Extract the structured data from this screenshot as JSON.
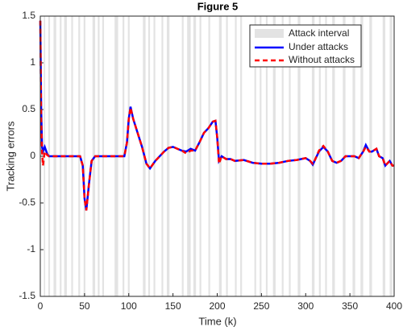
{
  "chart_data": {
    "type": "line",
    "title": "Figure 5",
    "xlabel": "Time (k)",
    "ylabel": "Tracking errors",
    "xlim": [
      0,
      400
    ],
    "ylim": [
      -1.5,
      1.5
    ],
    "xticks": [
      0,
      50,
      100,
      150,
      200,
      250,
      300,
      350,
      400
    ],
    "yticks": [
      -1.5,
      -1,
      -0.5,
      0,
      0.5,
      1,
      1.5
    ],
    "attack": {
      "name": "Attack interval",
      "color": "#e3e3e3",
      "intervals": [
        [
          4,
          5.5
        ],
        [
          9,
          11
        ],
        [
          15,
          18
        ],
        [
          22,
          24
        ],
        [
          27,
          30
        ],
        [
          35,
          37
        ],
        [
          43,
          45
        ],
        [
          49,
          51
        ],
        [
          59,
          62
        ],
        [
          65,
          67
        ],
        [
          70,
          72
        ],
        [
          84,
          88
        ],
        [
          93,
          95
        ],
        [
          99,
          101
        ],
        [
          116,
          119
        ],
        [
          122,
          124
        ],
        [
          128,
          130
        ],
        [
          137,
          139
        ],
        [
          143,
          146
        ],
        [
          160,
          162
        ],
        [
          166,
          170
        ],
        [
          173,
          176
        ],
        [
          180,
          182
        ],
        [
          190,
          192
        ],
        [
          202,
          205
        ],
        [
          210,
          212
        ],
        [
          220,
          222
        ],
        [
          226,
          228
        ],
        [
          242,
          244
        ],
        [
          248,
          250
        ],
        [
          255,
          257
        ],
        [
          263,
          266
        ],
        [
          273,
          275
        ],
        [
          281,
          283
        ],
        [
          291,
          294
        ],
        [
          307,
          310
        ],
        [
          315,
          317
        ],
        [
          322,
          324
        ],
        [
          330,
          333
        ],
        [
          342,
          345
        ],
        [
          353,
          356
        ],
        [
          362,
          365
        ],
        [
          372,
          375
        ],
        [
          387,
          390
        ],
        [
          395,
          398
        ]
      ]
    },
    "x": [
      0,
      1,
      2,
      3,
      5,
      8,
      10,
      45,
      48,
      50,
      52,
      55,
      58,
      62,
      95,
      98,
      100,
      102,
      105,
      110,
      115,
      120,
      124,
      130,
      140,
      145,
      150,
      155,
      160,
      165,
      170,
      175,
      180,
      185,
      190,
      195,
      198,
      200,
      202,
      205,
      210,
      215,
      220,
      230,
      240,
      250,
      260,
      270,
      280,
      290,
      300,
      305,
      308,
      310,
      315,
      320,
      325,
      330,
      335,
      340,
      345,
      350,
      355,
      360,
      365,
      368,
      372,
      375,
      380,
      383,
      387,
      390,
      395,
      398,
      400
    ],
    "series": [
      {
        "name": "Under attacks",
        "color": "#0000ff",
        "dash": false,
        "values": [
          1.45,
          0.5,
          0.1,
          0.05,
          0.1,
          0.02,
          0,
          0,
          -0.1,
          -0.45,
          -0.58,
          -0.3,
          -0.05,
          0,
          0,
          0.15,
          0.4,
          0.53,
          0.4,
          0.25,
          0.1,
          -0.08,
          -0.13,
          -0.05,
          0.05,
          0.09,
          0.1,
          0.08,
          0.06,
          0.05,
          0.08,
          0.06,
          0.15,
          0.25,
          0.3,
          0.37,
          0.38,
          0.2,
          -0.05,
          0,
          -0.03,
          -0.03,
          -0.05,
          -0.04,
          -0.07,
          -0.08,
          -0.08,
          -0.07,
          -0.05,
          -0.04,
          -0.02,
          -0.05,
          -0.09,
          -0.05,
          0.05,
          0.1,
          0.05,
          -0.05,
          -0.07,
          -0.05,
          0,
          0,
          0,
          -0.02,
          0.05,
          0.12,
          0.05,
          0.05,
          0.08,
          0,
          -0.02,
          -0.1,
          -0.05,
          -0.1,
          -0.1
        ]
      },
      {
        "name": "Without attacks",
        "color": "#ff0000",
        "dash": true,
        "values": [
          1.45,
          0.4,
          0.05,
          -0.1,
          0.05,
          0.01,
          0,
          0,
          -0.1,
          -0.45,
          -0.58,
          -0.3,
          -0.05,
          0,
          0,
          0.15,
          0.4,
          0.52,
          0.4,
          0.25,
          0.1,
          -0.08,
          -0.13,
          -0.05,
          0.05,
          0.09,
          0.1,
          0.08,
          0.06,
          0.03,
          0.06,
          0.06,
          0.15,
          0.25,
          0.3,
          0.37,
          0.38,
          0.2,
          -0.08,
          0,
          -0.03,
          -0.03,
          -0.05,
          -0.04,
          -0.07,
          -0.08,
          -0.08,
          -0.07,
          -0.05,
          -0.04,
          -0.02,
          -0.05,
          -0.08,
          -0.05,
          0.06,
          0.11,
          0.05,
          -0.05,
          -0.07,
          -0.05,
          0,
          0,
          0,
          -0.02,
          0.05,
          0.1,
          0.05,
          0.05,
          0.08,
          0,
          -0.02,
          -0.1,
          -0.05,
          -0.1,
          -0.1
        ]
      }
    ]
  }
}
